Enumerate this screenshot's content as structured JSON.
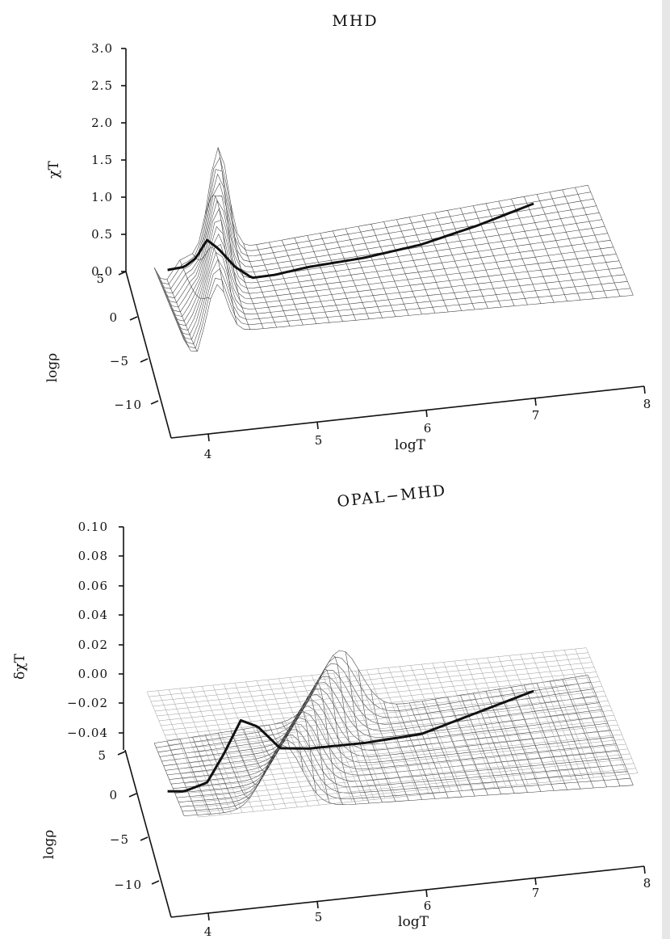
{
  "chart_data": [
    {
      "type": "surface",
      "title": "MHD",
      "zlabel": "χT",
      "ylabel": "logρ",
      "xlabel": "logT",
      "z_ticks": [
        "3.0",
        "2.5",
        "2.0",
        "1.5",
        "1.0",
        "0.5",
        "0.0"
      ],
      "y_ticks": [
        "5",
        "0",
        "−5",
        "−10"
      ],
      "x_ticks": [
        "4",
        "5",
        "6",
        "7",
        "8"
      ],
      "zlim": [
        0,
        3.0
      ],
      "xlim": [
        3.7,
        8
      ],
      "ylim": [
        -12,
        5
      ],
      "curve": {
        "logT": [
          3.75,
          3.9,
          4.0,
          4.1,
          4.2,
          4.35,
          4.5,
          4.7,
          5.0,
          5.5,
          6.0,
          6.5,
          7.0
        ],
        "chiT": [
          0.6,
          0.62,
          0.72,
          0.95,
          0.82,
          0.55,
          0.38,
          0.39,
          0.45,
          0.5,
          0.6,
          0.78,
          1.0
        ]
      }
    },
    {
      "type": "surface",
      "title": "OPAL−MHD",
      "zlabel": "δχT",
      "ylabel": "logρ",
      "xlabel": "logT",
      "z_ticks": [
        "0.10",
        "0.08",
        "0.06",
        "0.04",
        "0.02",
        "0.00",
        "−0.02",
        "−0.04"
      ],
      "y_ticks": [
        "5",
        "0",
        "−5",
        "−10"
      ],
      "x_ticks": [
        "4",
        "5",
        "6",
        "7",
        "8"
      ],
      "zlim": [
        -0.04,
        0.1
      ],
      "xlim": [
        3.7,
        8
      ],
      "ylim": [
        -12,
        5
      ],
      "curve": {
        "logT": [
          3.75,
          3.9,
          4.0,
          4.1,
          4.25,
          4.4,
          4.55,
          4.75,
          5.0,
          5.5,
          6.0,
          6.5,
          7.0
        ],
        "dchiT": [
          -0.04,
          -0.041,
          -0.039,
          -0.037,
          -0.02,
          0.0,
          -0.005,
          -0.02,
          -0.022,
          -0.022,
          -0.02,
          -0.01,
          0.0
        ]
      }
    }
  ]
}
